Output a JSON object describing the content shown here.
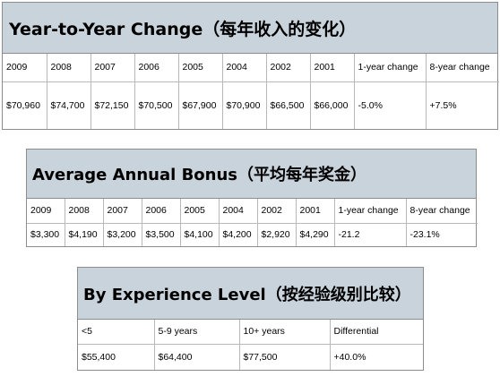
{
  "tables": [
    {
      "title": "Year-to-Year Change（每年收入的变化）",
      "headers": [
        "2009",
        "2008",
        "2007",
        "2006",
        "2005",
        "2004",
        "2002",
        "2001",
        "1-year change",
        "8-year change"
      ],
      "values": [
        "$70,960",
        "$74,700",
        "$72,150",
        "$70,500",
        "$67,900",
        "$70,900",
        "$66,500",
        "$66,000",
        "-5.0%",
        "+7.5%"
      ]
    },
    {
      "title": "Average Annual Bonus（平均每年奖金）",
      "headers": [
        "2009",
        "2008",
        "2007",
        "2006",
        "2005",
        "2004",
        "2002",
        "2001",
        "1-year change",
        "8-year change"
      ],
      "values": [
        "$3,300",
        "$4,190",
        "$3,200",
        "$3,500",
        "$4,100",
        "$4,200",
        "$2,920",
        "$4,290",
        "-21.2",
        "-23.1%"
      ]
    },
    {
      "title": "By Experience Level（按经验级别比较）",
      "headers": [
        "<5",
        "5-9 years",
        "10+ years",
        "Differential"
      ],
      "values": [
        "$55,400",
        "$64,400",
        "$77,500",
        "+40.0%"
      ]
    }
  ],
  "colors": {
    "title_background": "#c9d3dc",
    "panel_border": "#8c8c8c",
    "cell_border": "#b8b8b8"
  }
}
